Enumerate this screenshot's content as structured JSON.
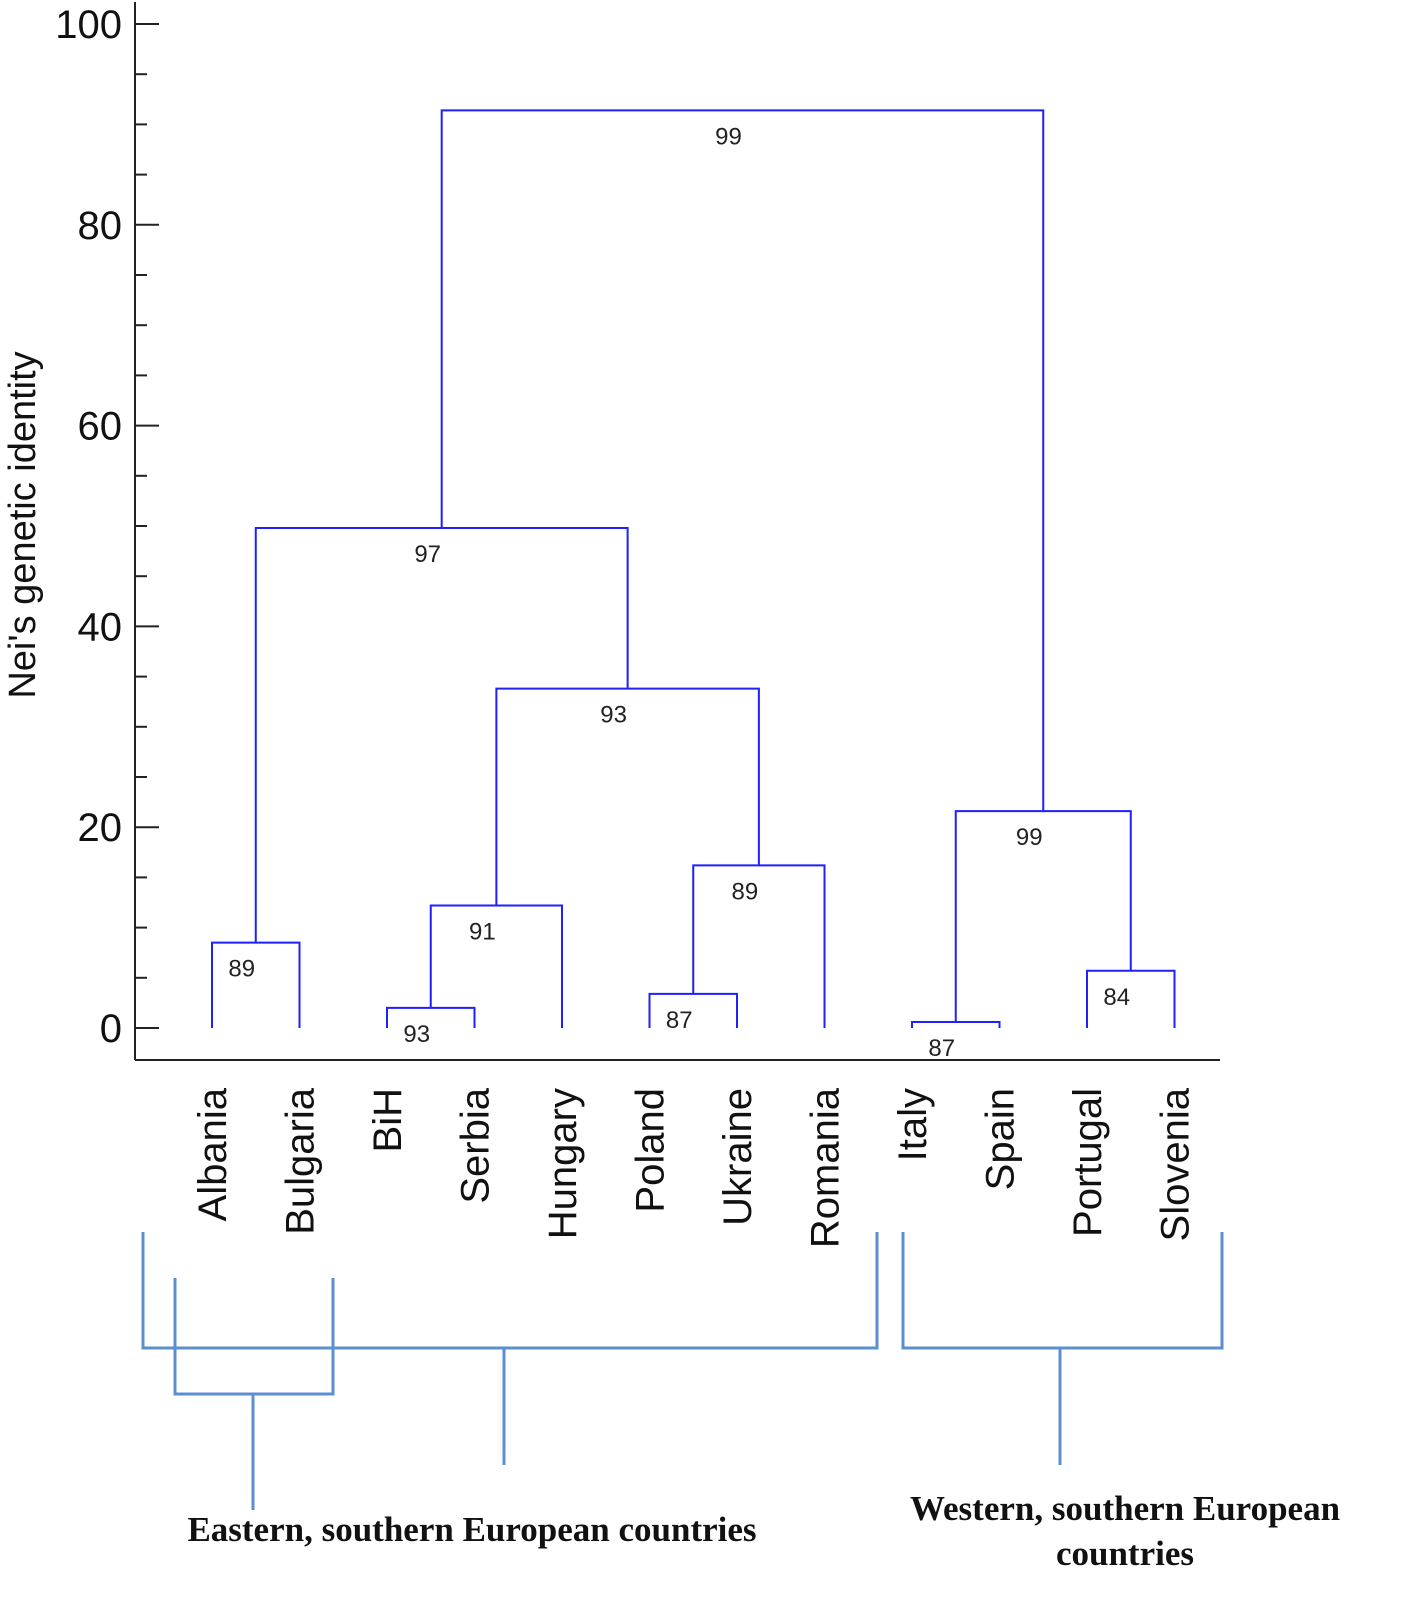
{
  "chart_data": {
    "type": "dendrogram",
    "ylabel": "Nei's genetic identity",
    "ylim": [
      0,
      100
    ],
    "yticks": [
      0,
      20,
      40,
      60,
      80,
      100
    ],
    "minor_tick_step": 5,
    "line_color": "#1f1fff",
    "leaves": [
      "Albania",
      "Bulgaria",
      "BiH",
      "Serbia",
      "Hungary",
      "Poland",
      "Ukraine",
      "Romania",
      "Italy",
      "Spain",
      "Portugal",
      "Slovenia"
    ],
    "merges": [
      {
        "left": 0,
        "right": 1,
        "height": 8.5,
        "support": "89"
      },
      {
        "left": 2,
        "right": 3,
        "height": 2.0,
        "support": "93"
      },
      {
        "left": 13,
        "right": 4,
        "height": 12.2,
        "support": "91"
      },
      {
        "left": 5,
        "right": 6,
        "height": 3.4,
        "support": "87"
      },
      {
        "left": 15,
        "right": 7,
        "height": 16.2,
        "support": "89"
      },
      {
        "left": 14,
        "right": 16,
        "height": 33.8,
        "support": "93"
      },
      {
        "left": 12,
        "right": 17,
        "height": 49.8,
        "support": "97"
      },
      {
        "left": 8,
        "right": 9,
        "height": 0.6,
        "support": "87"
      },
      {
        "left": 10,
        "right": 11,
        "height": 5.7,
        "support": "84"
      },
      {
        "left": 19,
        "right": 20,
        "height": 21.6,
        "support": "99"
      },
      {
        "left": 18,
        "right": 21,
        "height": 91.4,
        "support": "99"
      }
    ],
    "groups": {
      "bracket_color": "#5b8fd0",
      "eastern_label": "Eastern, southern European countries",
      "western_label_line1": "Western, southern European",
      "western_label_line2": "countries"
    }
  }
}
